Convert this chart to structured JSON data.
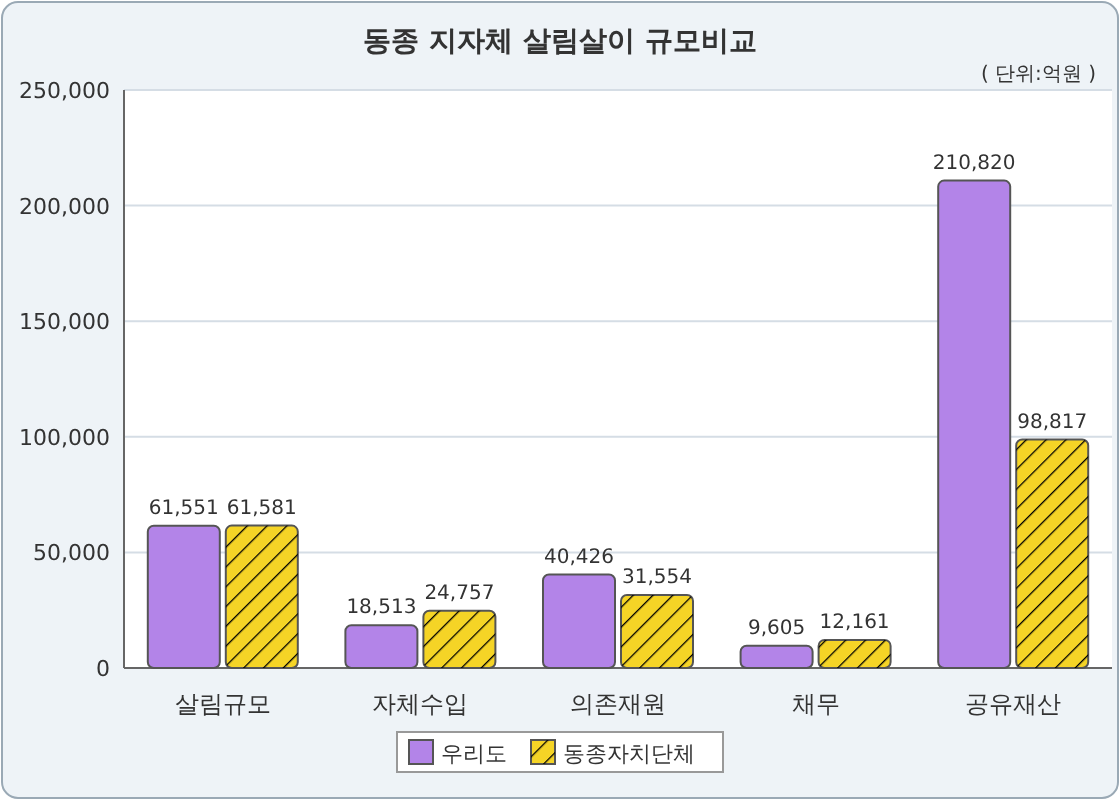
{
  "chart_data": {
    "type": "bar",
    "title": "동종 지자체 살림살이 규모비교",
    "annotations": [
      "( 단위:억원 )"
    ],
    "categories": [
      "살림규모",
      "자체수입",
      "의존재원",
      "채무",
      "공유재산"
    ],
    "series": [
      {
        "name": "우리도",
        "color": "#b384e8",
        "values": [
          61551,
          18513,
          40426,
          9605,
          210820
        ],
        "value_labels": [
          "61,551",
          "18,513",
          "40,426",
          "9,605",
          "210,820"
        ]
      },
      {
        "name": "동종자치단체",
        "color": "#f5d426",
        "values": [
          61581,
          24757,
          31554,
          12161,
          98817
        ],
        "value_labels": [
          "61,581",
          "24,757",
          "31,554",
          "12,161",
          "98,817"
        ]
      }
    ],
    "ylim": [
      0,
      250000
    ],
    "yticks": [
      {
        "value": 0,
        "label": "0"
      },
      {
        "value": 50000,
        "label": "50,000"
      },
      {
        "value": 100000,
        "label": "100,000"
      },
      {
        "value": 150000,
        "label": "150,000"
      },
      {
        "value": 200000,
        "label": "200,000"
      },
      {
        "value": 250000,
        "label": "250,000"
      }
    ],
    "grid": "y",
    "legend": "bottom"
  }
}
